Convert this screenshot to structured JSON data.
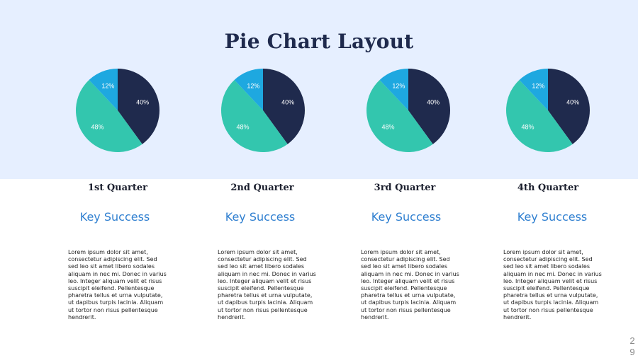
{
  "slide": {
    "title": "Pie Chart Layout",
    "page_number_digits": [
      "2",
      "9"
    ]
  },
  "colors": {
    "background_band": "#e6efff",
    "navy": "#1f2a4d",
    "teal": "#33c6ae",
    "blue": "#1ea8e0",
    "accent_text": "#2f7fd0"
  },
  "columns": [
    {
      "quarter": "1st Quarter",
      "subtitle": "Key Success",
      "body": "Lorem ipsum dolor sit amet, consectetur adipiscing elit. Sed sed leo sit amet libero sodales aliquam in nec mi. Donec in varius leo. Integer aliquam velit et risus suscipit eleifend. Pellentesque pharetra tellus et urna vulputate, ut dapibus turpis lacinia. Aliquam ut tortor non risus pellentesque hendrerit."
    },
    {
      "quarter": "2nd Quarter",
      "subtitle": "Key Success",
      "body": "Lorem ipsum dolor sit amet, consectetur adipiscing elit. Sed sed leo sit amet libero sodales aliquam in nec mi. Donec in varius leo. Integer aliquam velit et risus suscipit eleifend. Pellentesque pharetra tellus et urna vulputate, ut dapibus turpis lacinia. Aliquam ut tortor non risus pellentesque hendrerit."
    },
    {
      "quarter": "3rd Quarter",
      "subtitle": "Key Success",
      "body": "Lorem ipsum dolor sit amet, consectetur adipiscing elit. Sed sed leo sit amet libero sodales aliquam in nec mi. Donec in varius leo. Integer aliquam velit et risus suscipit eleifend. Pellentesque pharetra tellus et urna vulputate, ut dapibus turpis lacinia. Aliquam ut tortor non risus pellentesque hendrerit."
    },
    {
      "quarter": "4th Quarter",
      "subtitle": "Key Success",
      "body": "Lorem ipsum dolor sit amet, consectetur adipiscing elit. Sed sed leo sit amet libero sodales aliquam in nec mi. Donec in varius leo. Integer aliquam velit et risus suscipit eleifend. Pellentesque pharetra tellus et urna vulputate, ut dapibus turpis lacinia. Aliquam ut tortor non risus pellentesque hendrerit."
    }
  ],
  "chart_data": [
    {
      "type": "pie",
      "title": "",
      "slices": [
        {
          "label": "40%",
          "value": 40,
          "color": "#1f2a4d"
        },
        {
          "label": "48%",
          "value": 48,
          "color": "#33c6ae"
        },
        {
          "label": "12%",
          "value": 12,
          "color": "#1ea8e0"
        }
      ]
    },
    {
      "type": "pie",
      "title": "",
      "slices": [
        {
          "label": "40%",
          "value": 40,
          "color": "#1f2a4d"
        },
        {
          "label": "48%",
          "value": 48,
          "color": "#33c6ae"
        },
        {
          "label": "12%",
          "value": 12,
          "color": "#1ea8e0"
        }
      ]
    },
    {
      "type": "pie",
      "title": "",
      "slices": [
        {
          "label": "40%",
          "value": 40,
          "color": "#1f2a4d"
        },
        {
          "label": "48%",
          "value": 48,
          "color": "#33c6ae"
        },
        {
          "label": "12%",
          "value": 12,
          "color": "#1ea8e0"
        }
      ]
    },
    {
      "type": "pie",
      "title": "",
      "slices": [
        {
          "label": "40%",
          "value": 40,
          "color": "#1f2a4d"
        },
        {
          "label": "48%",
          "value": 48,
          "color": "#33c6ae"
        },
        {
          "label": "12%",
          "value": 12,
          "color": "#1ea8e0"
        }
      ]
    }
  ]
}
